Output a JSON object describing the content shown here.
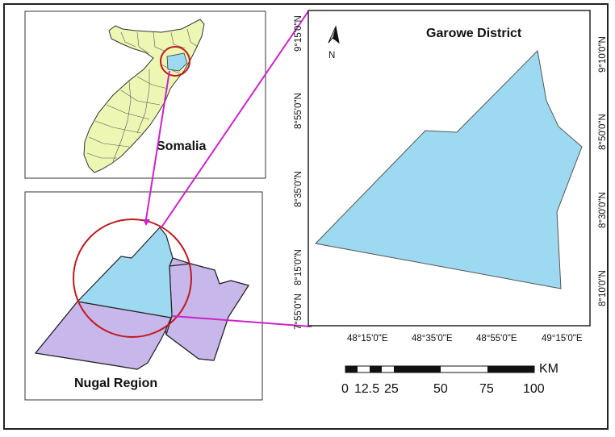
{
  "panels": {
    "somalia": {
      "label": "Somalia"
    },
    "nugal": {
      "label": "Nugal Region"
    },
    "garowe": {
      "label": "Garowe District"
    }
  },
  "north_arrow": {
    "label": "N"
  },
  "axes": {
    "bottom_ticks": [
      "48°15'0\"E",
      "48°35'0\"E",
      "48°55'0\"E",
      "49°15'0\"E"
    ],
    "left_ticks": [
      "9°15'0\"N",
      "8°55'0\"N",
      "8°35'0\"N",
      "8°15'0\"N",
      "7°55'0\"N"
    ],
    "right_ticks": [
      "9°10'0\"N",
      "8°50'0\"N",
      "8°30'0\"N",
      "8°10'0\"N"
    ]
  },
  "scale_bar": {
    "unit": "KM",
    "labels": [
      "0",
      "12.5",
      "25",
      "50",
      "75",
      "100"
    ]
  },
  "colors": {
    "country_fill": "#eef6b4",
    "district_fill": "#9dd9f0",
    "region_fill": "#c8b7ea",
    "connector": "#cc22cc",
    "circle": "#c0191f",
    "frame": "#222222"
  }
}
